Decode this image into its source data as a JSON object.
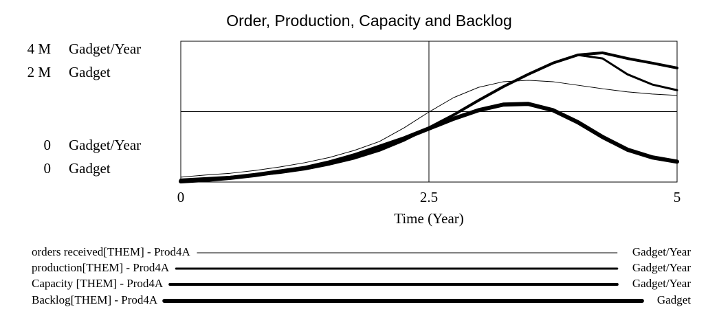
{
  "chart_data": {
    "type": "line",
    "title": "Order, Production, Capacity and Backlog",
    "x_label": "Time (Year)",
    "y_label": "Gadget/Year",
    "y2_label": "Gadget",
    "x": [
      0,
      0.25,
      0.5,
      0.75,
      1,
      1.25,
      1.5,
      1.75,
      2,
      2.25,
      2.5,
      2.75,
      3,
      3.25,
      3.5,
      3.75,
      4,
      4.25,
      4.5,
      4.75,
      5
    ],
    "xlim": [
      0,
      5
    ],
    "xticks": [
      0,
      2.5,
      5
    ],
    "ylim": [
      0,
      4000000
    ],
    "yticks": [
      0,
      {
        "value": 2000000,
        "label": null
      },
      {
        "value": 4000000,
        "label": "4 M"
      }
    ],
    "y2lim": [
      0,
      2000000
    ],
    "y2ticks": [
      0,
      {
        "value": 2000000,
        "label": "2 M"
      }
    ],
    "grid": true,
    "series": [
      {
        "name": "orders received[THEM] - Prod4A",
        "units": "Gadget/Year",
        "color": "#000000",
        "line_width": 1,
        "values": [
          140000,
          200000,
          250000,
          330000,
          430000,
          550000,
          700000,
          900000,
          1150000,
          1540000,
          1990000,
          2400000,
          2690000,
          2850000,
          2890000,
          2850000,
          2750000,
          2650000,
          2560000,
          2500000,
          2460000
        ]
      },
      {
        "name": "production[THEM] - Prod4A",
        "units": "Gadget/Year",
        "color": "#000000",
        "line_width": 3,
        "values": [
          60000,
          100000,
          140000,
          200000,
          270000,
          370000,
          510000,
          680000,
          900000,
          1190000,
          1540000,
          1910000,
          2320000,
          2710000,
          3060000,
          3380000,
          3610000,
          3510000,
          3060000,
          2770000,
          2610000
        ]
      },
      {
        "name": "Capacity [THEM] - Prod4A",
        "units": "Gadget/Year",
        "color": "#000000",
        "line_width": 4,
        "values": [
          60000,
          100000,
          140000,
          200000,
          270000,
          370000,
          510000,
          680000,
          900000,
          1190000,
          1540000,
          1910000,
          2320000,
          2710000,
          3060000,
          3380000,
          3610000,
          3670000,
          3510000,
          3380000,
          3240000
        ]
      },
      {
        "name": "Backlog[THEM] - Prod4A",
        "units": "Gadget",
        "color": "#000000",
        "line_width": 6,
        "axis": "y2",
        "values": [
          10000,
          30000,
          60000,
          100000,
          150000,
          200000,
          280000,
          380000,
          500000,
          620000,
          760000,
          900000,
          1020000,
          1100000,
          1110000,
          1020000,
          850000,
          640000,
          460000,
          350000,
          290000
        ]
      }
    ]
  }
}
